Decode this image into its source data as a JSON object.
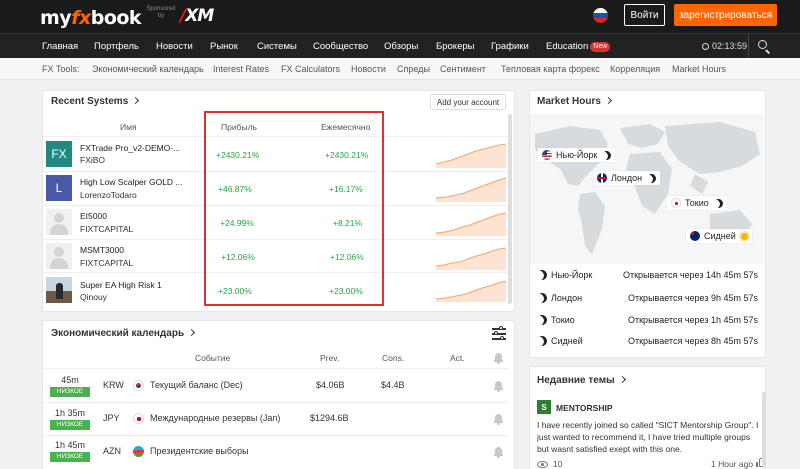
{
  "header": {
    "logo": {
      "prefix": "my",
      "accent": "fx",
      "suffix": "book"
    },
    "sponsor_text": "Sponsored by",
    "sponsor_logo": {
      "slash": "/",
      "text": "XM"
    },
    "login_label": "Войти",
    "register_label": "зарегистрироваться",
    "accent_color": "#ff6600"
  },
  "nav": {
    "items": [
      "Главная",
      "Портфель",
      "Новости",
      "Рынок",
      "Системы",
      "Сообщество",
      "Обзоры",
      "Брокеры",
      "Графики",
      "Education"
    ],
    "new_badge": "New",
    "clock": "02:13:59"
  },
  "tools": {
    "items": [
      "FX Tools:",
      "Экономический календарь",
      "Interest Rates",
      "FX Calculators",
      "Новости",
      "Спреды",
      "Сентимент",
      "Тепловая карта форекс",
      "Корреляция",
      "Market Hours"
    ]
  },
  "recent_systems": {
    "title": "Recent Systems",
    "add_account": "Add your account",
    "columns": {
      "name": "Имя",
      "gain": "Прибыль",
      "monthly": "Ежемесячно"
    },
    "rows": [
      {
        "name": "FXTrade Pro_v2-DEMO-...",
        "owner": "FXiBO",
        "gain": "+2430.21%",
        "monthly": "+2430.21%",
        "avatar_text": "FX",
        "avatar_color": "#1e8a82",
        "avatar_type": "text"
      },
      {
        "name": "High Low Scalper GOLD ...",
        "owner": "LorenzoTodaro",
        "gain": "+46.87%",
        "monthly": "+16.17%",
        "avatar_text": "L",
        "avatar_color": "#4a58a8",
        "avatar_type": "text"
      },
      {
        "name": "EI5000",
        "owner": "FIXTCAPITAL",
        "gain": "+24.99%",
        "monthly": "+8.21%",
        "avatar_text": "",
        "avatar_color": "#f0f0f0",
        "avatar_type": "generic"
      },
      {
        "name": "MSMT3000",
        "owner": "FIXTCAPITAL",
        "gain": "+12.06%",
        "monthly": "+12.06%",
        "avatar_text": "",
        "avatar_color": "#f0f0f0",
        "avatar_type": "generic"
      },
      {
        "name": "Super EA High Risk 1",
        "owner": "Qinouy",
        "gain": "+23.00%",
        "monthly": "+23.00%",
        "avatar_text": "",
        "avatar_color": "#ddd",
        "avatar_type": "photo"
      }
    ]
  },
  "calendar": {
    "title": "Экономический календарь",
    "columns": {
      "event": "Событие",
      "prev": "Prev.",
      "cons": "Cons.",
      "act": "Act."
    },
    "rows": [
      {
        "time": "45m",
        "impact": "НИЗКОЕ",
        "currency": "KRW",
        "event": "Текущий баланс (Dec)",
        "prev": "$4.06B",
        "cons": "$4.4B",
        "act": ""
      },
      {
        "time": "1h 35m",
        "impact": "НИЗКОЕ",
        "currency": "JPY",
        "event": "Международные резервы (Jan)",
        "prev": "$1294.6B",
        "cons": "",
        "act": ""
      },
      {
        "time": "1h 45m",
        "impact": "НИЗКОЕ",
        "currency": "AZN",
        "event": "Президентские выборы",
        "prev": "",
        "cons": "",
        "act": ""
      }
    ]
  },
  "market_hours": {
    "title": "Market Hours",
    "map_labels": [
      {
        "city": "Нью-Йорк",
        "state": "night"
      },
      {
        "city": "Лондон",
        "state": "night"
      },
      {
        "city": "Токио",
        "state": "night"
      },
      {
        "city": "Сидней",
        "state": "day"
      }
    ],
    "rows": [
      {
        "city": "Нью-Йорк",
        "status": "Открывается через 14h 45m 57s"
      },
      {
        "city": "Лондон",
        "status": "Открывается через 9h 45m 57s"
      },
      {
        "city": "Токио",
        "status": "Открывается через 1h 45m 57s"
      },
      {
        "city": "Сидней",
        "status": "Открывается через 8h 45m 57s"
      }
    ]
  },
  "topics": {
    "title": "Недавние темы",
    "badge_letter": "S",
    "category": "MENTORSHIP",
    "text": "I have recently joined so called \"SICT Mentorship Group\". I just wanted to recommend it, I have tried multiple groups but wasnt satisfied exept with this one.",
    "views": "10",
    "ago": "1 Hour ago"
  }
}
